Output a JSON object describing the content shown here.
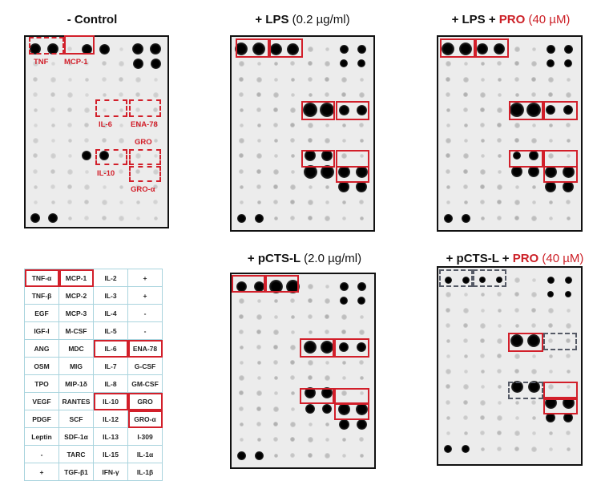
{
  "panels": [
    {
      "id": "control",
      "title_parts": [
        {
          "text": "- Control",
          "style": "bold"
        }
      ],
      "arrows": [
        {
          "label": "TNF"
        },
        {
          "label": "MCP-1"
        },
        {
          "label": "IL-6"
        },
        {
          "label": "ENA-78"
        },
        {
          "label": "GRO"
        },
        {
          "label": "IL-10"
        },
        {
          "label": "GRO-α"
        }
      ]
    },
    {
      "id": "lps",
      "title_parts": [
        {
          "text": "+ LPS ",
          "style": "bold"
        },
        {
          "text": "(0.2 µg/ml)",
          "style": "light"
        }
      ]
    },
    {
      "id": "lps-pro",
      "title_parts": [
        {
          "text": "+ LPS + ",
          "style": "bold"
        },
        {
          "text": "PRO",
          "style": "red"
        },
        {
          "text": " (40 µM)",
          "style": "lightred"
        }
      ]
    },
    {
      "id": "pcts",
      "title_parts": [
        {
          "text": "+ pCTS-L ",
          "style": "bold"
        },
        {
          "text": "(2.0 µg/ml)",
          "style": "light"
        }
      ]
    },
    {
      "id": "pcts-pro",
      "title_parts": [
        {
          "text": "+ pCTS-L + ",
          "style": "bold"
        },
        {
          "text": "PRO",
          "style": "red"
        },
        {
          "text": " (40 µM)",
          "style": "lightred"
        }
      ]
    }
  ],
  "legend": {
    "rows": [
      [
        "TNF-α",
        "MCP-1",
        "IL-2",
        "+"
      ],
      [
        "TNF-β",
        "MCP-2",
        "IL-3",
        "+"
      ],
      [
        "EGF",
        "MCP-3",
        "IL-4",
        "-"
      ],
      [
        "IGF-I",
        "M-CSF",
        "IL-5",
        "-"
      ],
      [
        "ANG",
        "MDC",
        "IL-6",
        "ENA-78"
      ],
      [
        "OSM",
        "MIG",
        "IL-7",
        "G-CSF"
      ],
      [
        "TPO",
        "MIP-1δ",
        "IL-8",
        "GM-CSF"
      ],
      [
        "VEGF",
        "RANTES",
        "IL-10",
        "GRO"
      ],
      [
        "PDGF",
        "SCF",
        "IL-12",
        "GRO-α"
      ],
      [
        "Leptin",
        "SDF-1α",
        "IL-13",
        "I-309"
      ],
      [
        "-",
        "TARC",
        "IL-15",
        "IL-1α"
      ],
      [
        "+",
        "TGF-β1",
        "IFN-γ",
        "IL-1β"
      ]
    ],
    "highlighted": [
      "TNF-α",
      "MCP-1",
      "IL-6",
      "ENA-78",
      "IL-10",
      "GRO",
      "GRO-α"
    ]
  }
}
